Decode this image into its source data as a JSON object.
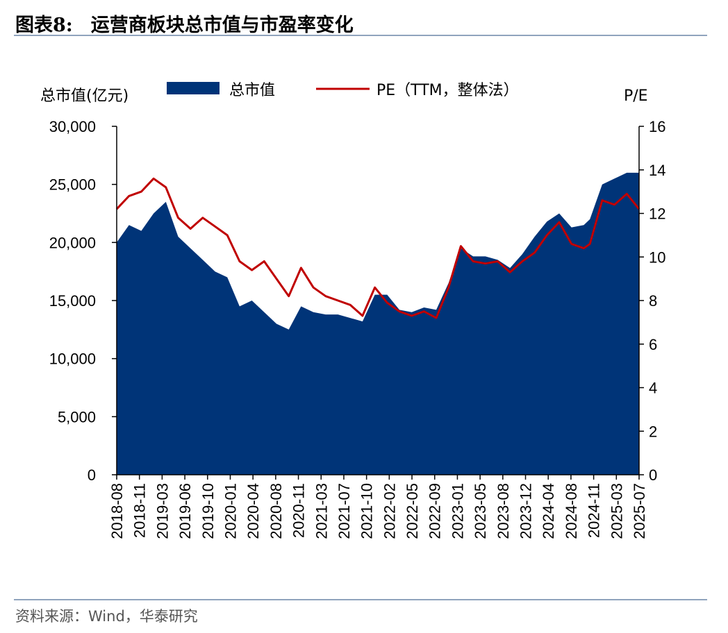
{
  "figure": {
    "label": "图表8:",
    "title": "运营商板块总市值与市盈率变化"
  },
  "source": "资料来源：Wind，华泰研究",
  "chart_data": {
    "type": "area+line",
    "left_axis": {
      "label": "总市值(亿元)",
      "range": [
        0,
        30000
      ],
      "ticks": [
        "0",
        "5,000",
        "10,000",
        "15,000",
        "20,000",
        "25,000",
        "30,000"
      ]
    },
    "right_axis": {
      "label": "P/E",
      "range": [
        0,
        16
      ],
      "ticks": [
        "0",
        "2",
        "4",
        "6",
        "8",
        "10",
        "12",
        "14",
        "16"
      ]
    },
    "x_ticks": [
      "2018-08",
      "2018-11",
      "2019-03",
      "2019-06",
      "2019-10",
      "2020-01",
      "2020-04",
      "2020-08",
      "2020-11",
      "2021-03",
      "2021-07",
      "2021-10",
      "2022-02",
      "2022-05",
      "2022-09",
      "2023-01",
      "2023-05",
      "2023-08",
      "2023-12",
      "2024-04",
      "2024-08",
      "2024-11",
      "2025-03",
      "2025-07"
    ],
    "legend": [
      "总市值",
      "PE（TTM，整体法）"
    ],
    "legend_position": "top",
    "colors": {
      "area": "#003478",
      "line": "#c00000"
    },
    "series": [
      {
        "name": "总市值",
        "axis": "left",
        "kind": "area",
        "x": [
          "2018-08",
          "2018-10",
          "2018-12",
          "2019-02",
          "2019-04",
          "2019-06",
          "2019-08",
          "2019-10",
          "2019-12",
          "2020-02",
          "2020-04",
          "2020-06",
          "2020-08",
          "2020-10",
          "2020-12",
          "2021-02",
          "2021-04",
          "2021-06",
          "2021-08",
          "2021-10",
          "2021-12",
          "2022-02",
          "2022-04",
          "2022-06",
          "2022-08",
          "2022-10",
          "2022-12",
          "2023-02",
          "2023-04",
          "2023-06",
          "2023-08",
          "2023-10",
          "2023-12",
          "2024-02",
          "2024-04",
          "2024-06",
          "2024-08",
          "2024-10",
          "2024-12",
          "2025-01",
          "2025-03",
          "2025-05",
          "2025-07",
          "2025-09"
        ],
        "values": [
          20000,
          21500,
          21000,
          22500,
          23500,
          20500,
          19500,
          18500,
          17500,
          17000,
          14500,
          15000,
          14000,
          13000,
          12500,
          14500,
          14000,
          13800,
          13800,
          13500,
          13200,
          15500,
          15500,
          14200,
          14000,
          14400,
          14200,
          16500,
          19500,
          18800,
          18800,
          18500,
          17800,
          19000,
          20500,
          21800,
          22500,
          21300,
          21500,
          22000,
          25000,
          25500,
          26000,
          26000
        ]
      },
      {
        "name": "PE（TTM，整体法）",
        "axis": "right",
        "kind": "line",
        "x": [
          "2018-08",
          "2018-10",
          "2018-12",
          "2019-02",
          "2019-04",
          "2019-06",
          "2019-08",
          "2019-10",
          "2019-12",
          "2020-02",
          "2020-04",
          "2020-06",
          "2020-08",
          "2020-10",
          "2020-12",
          "2021-02",
          "2021-04",
          "2021-06",
          "2021-08",
          "2021-10",
          "2021-12",
          "2022-02",
          "2022-04",
          "2022-06",
          "2022-08",
          "2022-10",
          "2022-12",
          "2023-02",
          "2023-04",
          "2023-06",
          "2023-08",
          "2023-10",
          "2023-12",
          "2024-02",
          "2024-04",
          "2024-06",
          "2024-08",
          "2024-10",
          "2024-12",
          "2025-01",
          "2025-03",
          "2025-05",
          "2025-07",
          "2025-09"
        ],
        "values": [
          12.2,
          12.8,
          13.0,
          13.6,
          13.2,
          11.8,
          11.3,
          11.8,
          11.4,
          11.0,
          9.8,
          9.4,
          9.8,
          9.0,
          8.2,
          9.5,
          8.6,
          8.2,
          8.0,
          7.8,
          7.3,
          8.6,
          7.9,
          7.5,
          7.3,
          7.5,
          7.2,
          8.6,
          10.5,
          9.8,
          9.7,
          9.8,
          9.3,
          9.8,
          10.2,
          11.0,
          11.6,
          10.6,
          10.4,
          10.6,
          12.6,
          12.4,
          12.9,
          12.2
        ]
      }
    ]
  }
}
